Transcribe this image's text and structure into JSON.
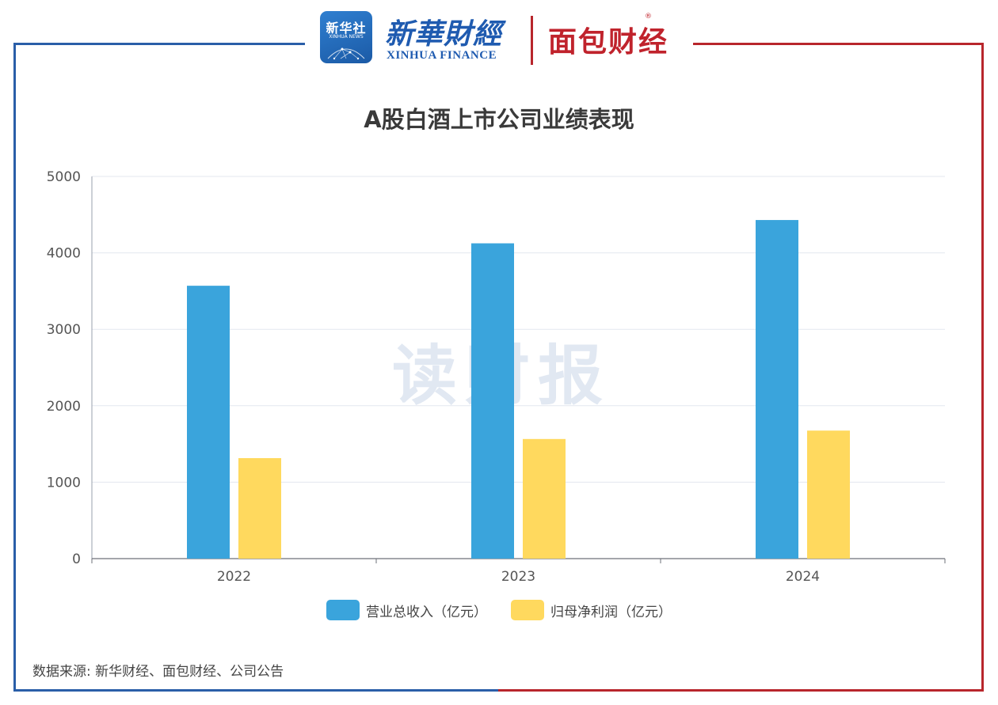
{
  "brand": {
    "badge_line1": "新华社",
    "badge_line2": "XINHUA NEWS",
    "xinhua_cn": "新華財經",
    "xinhua_en": "XINHUA FINANCE",
    "mianbao": "面包财经",
    "registered_mark": "®"
  },
  "watermark": "读财报",
  "source_text": "数据来源: 新华财经、面包财经、公司公告",
  "colors": {
    "revenue": "#3aa4dc",
    "profit": "#ffd95e",
    "frame_left": "#2a5ea8",
    "frame_right": "#b8262c"
  },
  "chart_data": {
    "type": "bar",
    "title": "A股白酒上市公司业绩表现",
    "categories": [
      "2022",
      "2023",
      "2024"
    ],
    "series": [
      {
        "name": "营业总收入（亿元）",
        "values": [
          3570,
          4125,
          4430
        ]
      },
      {
        "name": "归母净利润（亿元）",
        "values": [
          1315,
          1565,
          1675
        ]
      }
    ],
    "ylim": [
      0,
      5000
    ],
    "yticks": [
      "0",
      "1000",
      "2000",
      "3000",
      "4000",
      "5000"
    ],
    "grid": true,
    "legend_position": "bottom"
  }
}
